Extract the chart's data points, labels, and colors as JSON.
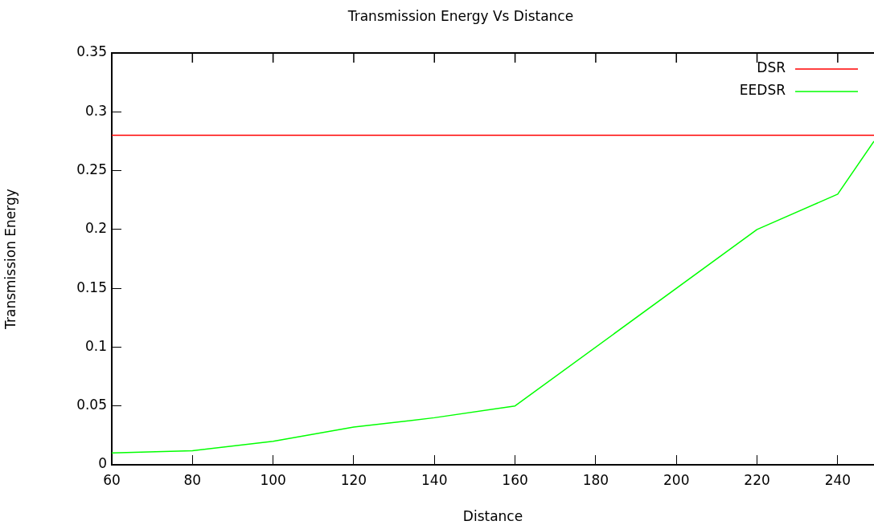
{
  "chart_data": {
    "type": "line",
    "title": "Transmission Energy Vs Distance",
    "xlabel": "Distance",
    "ylabel": "Transmission Energy",
    "series": [
      {
        "name": "DSR",
        "color": "#ff0000",
        "x": [
          60,
          249
        ],
        "values": [
          0.28,
          0.28
        ]
      },
      {
        "name": "EEDSR",
        "color": "#00ff00",
        "x": [
          60,
          80,
          100,
          120,
          140,
          160,
          220,
          240,
          249
        ],
        "values": [
          0.01,
          0.012,
          0.02,
          0.032,
          0.04,
          0.05,
          0.2,
          0.23,
          0.275
        ]
      }
    ],
    "xlim": [
      60,
      249
    ],
    "xticks": [
      60,
      80,
      100,
      120,
      140,
      160,
      180,
      200,
      220,
      240
    ],
    "ylim": [
      0,
      0.35
    ],
    "yticks": [
      0,
      0.05,
      0.1,
      0.15,
      0.2,
      0.25,
      0.3,
      0.35
    ],
    "grid": false,
    "legend": "top right",
    "marker": "none",
    "line_style": "solid"
  }
}
